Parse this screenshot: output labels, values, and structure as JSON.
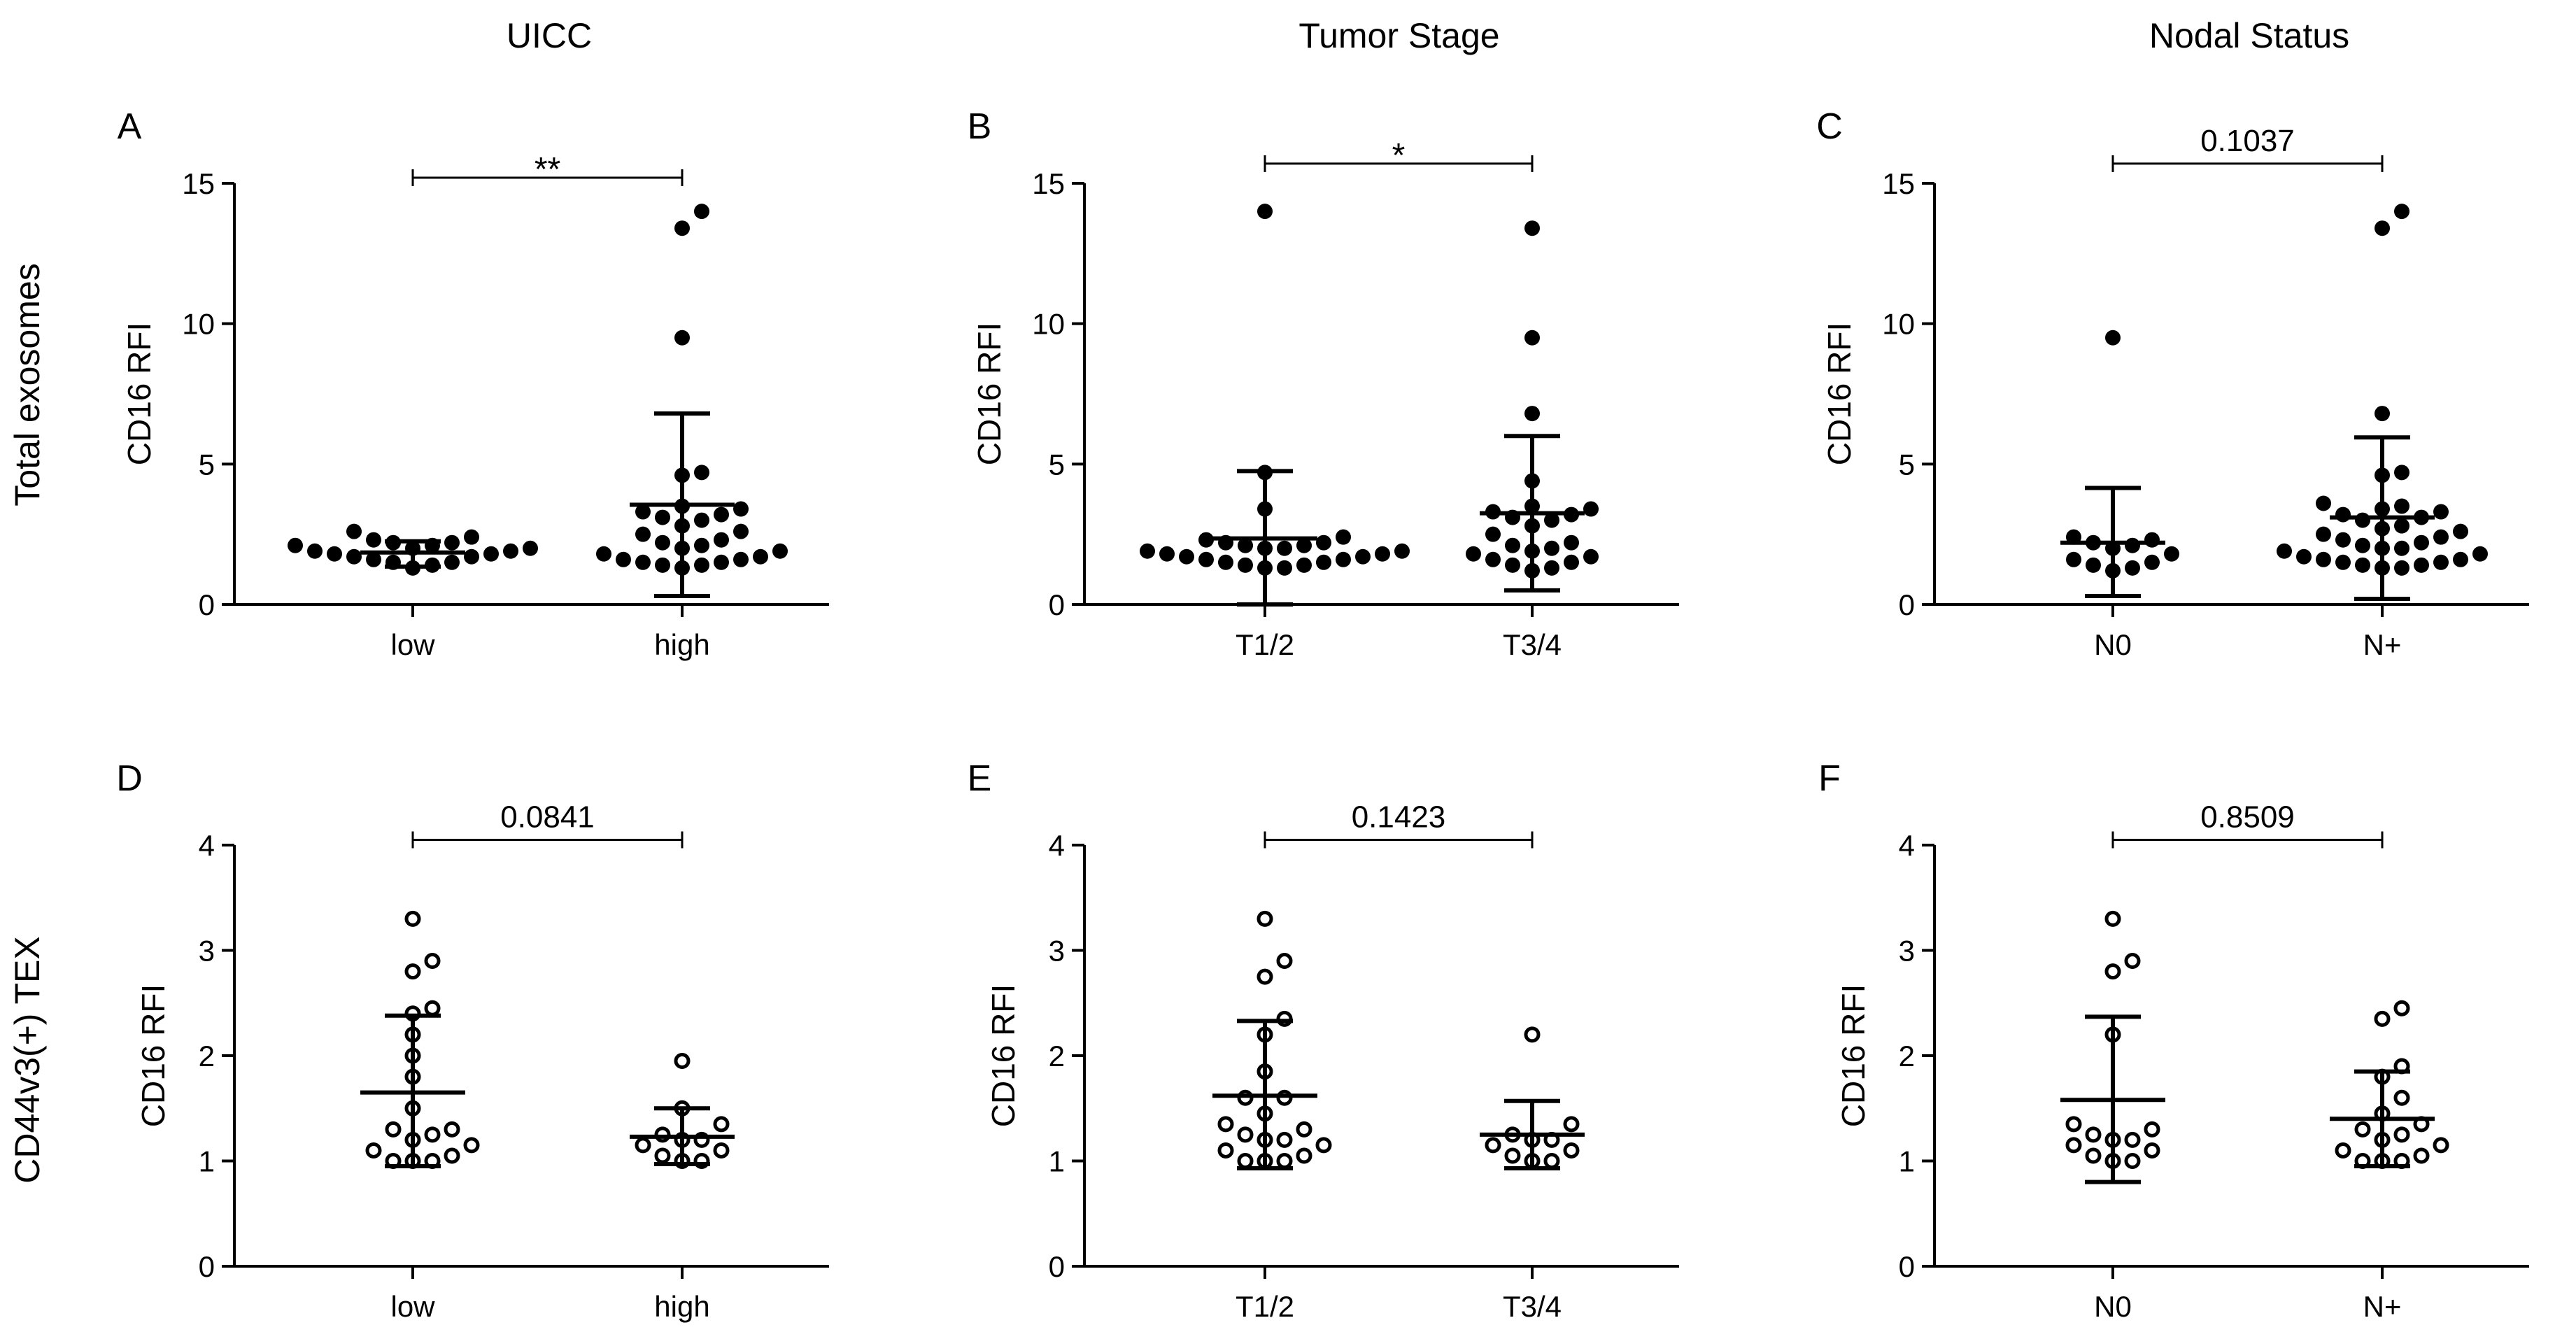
{
  "column_titles": [
    "UICC",
    "Tumor Stage",
    "Nodal Status"
  ],
  "row_titles": [
    "Total exosomes",
    "CD44v3(+) TEX"
  ],
  "colors": {
    "ink": "#000000",
    "background": "#ffffff"
  },
  "chart_data": [
    {
      "type": "scatter",
      "panel": "A",
      "ylabel": "CD16  RFI",
      "ylim": [
        0,
        15
      ],
      "yticks": [
        "0",
        "5",
        "10",
        "15"
      ],
      "categories": [
        "low",
        "high"
      ],
      "marker": "filled",
      "groups": [
        {
          "values": [
            1.3,
            1.4,
            1.5,
            1.5,
            1.6,
            1.7,
            1.7,
            1.8,
            1.8,
            1.9,
            1.9,
            2.0,
            2.0,
            2.1,
            2.1,
            2.2,
            2.2,
            2.3,
            2.4,
            2.6
          ],
          "mean": 1.85,
          "sd_low": 1.35,
          "sd_high": 2.25
        },
        {
          "values": [
            1.3,
            1.4,
            1.4,
            1.5,
            1.5,
            1.6,
            1.6,
            1.7,
            1.8,
            1.9,
            2.0,
            2.1,
            2.2,
            2.3,
            2.5,
            2.6,
            2.8,
            3.0,
            3.1,
            3.2,
            3.3,
            3.4,
            3.5,
            4.6,
            4.7,
            9.5,
            13.4,
            14.0
          ],
          "mean": 3.55,
          "sd_low": 0.3,
          "sd_high": 6.8
        }
      ],
      "comparison": {
        "label": "**",
        "y": 15.2
      }
    },
    {
      "type": "scatter",
      "panel": "B",
      "ylabel": "CD16  RFI",
      "ylim": [
        0,
        15
      ],
      "yticks": [
        "0",
        "5",
        "10",
        "15"
      ],
      "categories": [
        "T1/2",
        "T3/4"
      ],
      "marker": "filled",
      "groups": [
        {
          "values": [
            1.3,
            1.3,
            1.4,
            1.4,
            1.5,
            1.5,
            1.6,
            1.6,
            1.7,
            1.7,
            1.8,
            1.8,
            1.9,
            1.9,
            2.0,
            2.0,
            2.1,
            2.1,
            2.2,
            2.2,
            2.3,
            2.4,
            3.4,
            4.7,
            14.0
          ],
          "mean": 2.35,
          "sd_low": 0.0,
          "sd_high": 4.75
        },
        {
          "values": [
            1.2,
            1.3,
            1.4,
            1.5,
            1.6,
            1.7,
            1.8,
            1.9,
            2.0,
            2.1,
            2.2,
            2.5,
            2.8,
            3.0,
            3.1,
            3.2,
            3.3,
            3.4,
            3.5,
            4.4,
            6.8,
            9.5,
            13.4
          ],
          "mean": 3.25,
          "sd_low": 0.5,
          "sd_high": 6.0
        }
      ],
      "comparison": {
        "label": "*",
        "y": 15.7
      }
    },
    {
      "type": "scatter",
      "panel": "C",
      "ylabel": "CD16  RFI",
      "ylim": [
        0,
        15
      ],
      "yticks": [
        "0",
        "5",
        "10",
        "15"
      ],
      "categories": [
        "N0",
        "N+"
      ],
      "marker": "filled",
      "groups": [
        {
          "values": [
            1.2,
            1.3,
            1.4,
            1.5,
            1.6,
            1.8,
            2.0,
            2.1,
            2.2,
            2.3,
            2.4,
            9.5
          ],
          "mean": 2.2,
          "sd_low": 0.3,
          "sd_high": 4.15
        },
        {
          "values": [
            1.3,
            1.3,
            1.4,
            1.4,
            1.5,
            1.5,
            1.6,
            1.6,
            1.7,
            1.8,
            1.9,
            2.0,
            2.0,
            2.1,
            2.2,
            2.3,
            2.4,
            2.5,
            2.6,
            2.7,
            2.8,
            3.0,
            3.1,
            3.2,
            3.3,
            3.4,
            3.5,
            3.6,
            4.6,
            4.7,
            6.8,
            13.4,
            14.0
          ],
          "mean": 3.1,
          "sd_low": 0.2,
          "sd_high": 5.95
        }
      ],
      "comparison": {
        "label": "0.1037",
        "y": 15.7
      }
    },
    {
      "type": "scatter",
      "panel": "D",
      "ylabel": "CD16  RFI",
      "ylim": [
        0,
        4
      ],
      "yticks": [
        "0",
        "1",
        "2",
        "3",
        "4"
      ],
      "categories": [
        "low",
        "high"
      ],
      "marker": "open",
      "groups": [
        {
          "values": [
            1.0,
            1.0,
            1.0,
            1.05,
            1.1,
            1.15,
            1.2,
            1.25,
            1.3,
            1.3,
            1.5,
            1.8,
            2.0,
            2.2,
            2.4,
            2.45,
            2.8,
            2.9,
            3.3
          ],
          "mean": 1.65,
          "sd_low": 0.95,
          "sd_high": 2.38
        },
        {
          "values": [
            1.0,
            1.0,
            1.05,
            1.1,
            1.15,
            1.2,
            1.2,
            1.25,
            1.35,
            1.5,
            1.95
          ],
          "mean": 1.23,
          "sd_low": 0.97,
          "sd_high": 1.5
        }
      ],
      "comparison": {
        "label": "0.0841",
        "y": 4.05
      }
    },
    {
      "type": "scatter",
      "panel": "E",
      "ylabel": "CD16  RFI",
      "ylim": [
        0,
        4
      ],
      "yticks": [
        "0",
        "1",
        "2",
        "3",
        "4"
      ],
      "categories": [
        "T1/2",
        "T3/4"
      ],
      "marker": "open",
      "groups": [
        {
          "values": [
            1.0,
            1.0,
            1.0,
            1.05,
            1.1,
            1.15,
            1.2,
            1.2,
            1.25,
            1.3,
            1.35,
            1.45,
            1.6,
            1.6,
            1.85,
            2.2,
            2.35,
            2.75,
            2.9,
            3.3
          ],
          "mean": 1.62,
          "sd_low": 0.93,
          "sd_high": 2.33
        },
        {
          "values": [
            1.0,
            1.0,
            1.05,
            1.1,
            1.15,
            1.2,
            1.2,
            1.25,
            1.35,
            2.2
          ],
          "mean": 1.25,
          "sd_low": 0.93,
          "sd_high": 1.57
        }
      ],
      "comparison": {
        "label": "0.1423",
        "y": 4.05
      }
    },
    {
      "type": "scatter",
      "panel": "F",
      "ylabel": "CD16  RFI",
      "ylim": [
        0,
        4
      ],
      "yticks": [
        "0",
        "1",
        "2",
        "3",
        "4"
      ],
      "categories": [
        "N0",
        "N+"
      ],
      "marker": "open",
      "groups": [
        {
          "values": [
            1.0,
            1.0,
            1.05,
            1.1,
            1.15,
            1.2,
            1.2,
            1.25,
            1.3,
            1.35,
            2.2,
            2.8,
            2.9,
            3.3
          ],
          "mean": 1.58,
          "sd_low": 0.8,
          "sd_high": 2.37
        },
        {
          "values": [
            1.0,
            1.0,
            1.0,
            1.05,
            1.1,
            1.15,
            1.2,
            1.25,
            1.3,
            1.35,
            1.45,
            1.6,
            1.8,
            1.9,
            2.35,
            2.45
          ],
          "mean": 1.4,
          "sd_low": 0.95,
          "sd_high": 1.85
        }
      ],
      "comparison": {
        "label": "0.8509",
        "y": 4.05
      }
    }
  ]
}
